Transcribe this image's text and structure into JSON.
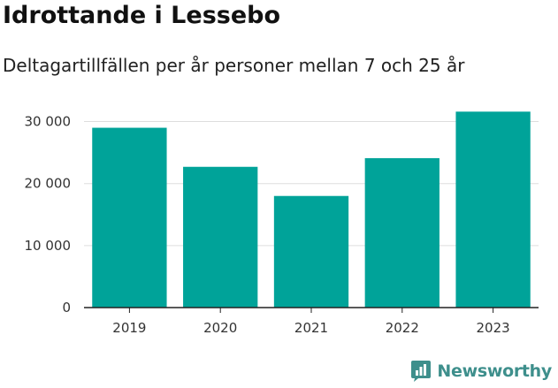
{
  "colors": {
    "bar": "#00a399",
    "grid": "#dddddd",
    "axis": "#222222",
    "brand": "#3e8f8c"
  },
  "brand": {
    "name": "Newsworthy",
    "icon": "bar-chart-badge-icon"
  },
  "chart_data": {
    "type": "bar",
    "title": "Idrottande i Lessebo",
    "subtitle": "Deltagartillfällen per år personer mellan 7 och 25 år",
    "categories": [
      "2019",
      "2020",
      "2021",
      "2022",
      "2023"
    ],
    "values": [
      29000,
      22700,
      18000,
      24100,
      31600
    ],
    "ylim": [
      0,
      32500
    ],
    "yticks": [
      0,
      10000,
      20000,
      30000
    ],
    "ytick_labels": [
      "0",
      "10 000",
      "20 000",
      "30 000"
    ],
    "grid": true,
    "legend": false
  }
}
